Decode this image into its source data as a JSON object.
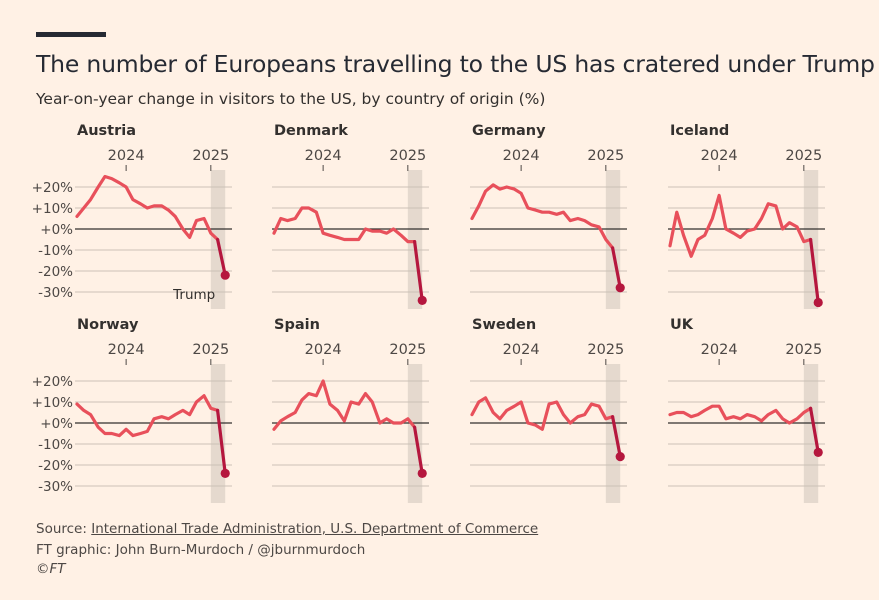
{
  "title": "The number of Europeans travelling to the US has cratered under Trump",
  "subtitle": "Year-on-year change in visitors to the US, by country of origin (%)",
  "footer": {
    "source_label": "Source: ",
    "source_link": "International Trade Administration, U.S. Department of Commerce",
    "credit": "FT graphic: John Burn-Murdoch / @jburnmurdoch",
    "copyright": "©FT"
  },
  "colors": {
    "background": "#fff1e5",
    "series": "#e8505b",
    "trump_period": "#b5173e",
    "shade": "#e5d9ce",
    "grid": "#ccc1b7",
    "zero_line": "#33302e"
  },
  "chart_data": {
    "type": "line",
    "y_ticks": [
      20,
      10,
      0,
      -10,
      -20,
      -30
    ],
    "y_tick_labels": [
      "+20%",
      "+10%",
      "+0%",
      "-10%",
      "-20%",
      "-30%"
    ],
    "ylim": [
      -35,
      28
    ],
    "x_range": [
      2023.42,
      2025.25
    ],
    "x_ticks": [
      2024,
      2025
    ],
    "x_tick_labels": [
      "2024",
      "2025"
    ],
    "shaded_period": [
      2025.0,
      2025.17
    ],
    "trump_start": 2025.17,
    "annotation": {
      "text": "Trump",
      "panel": "Austria"
    },
    "x": [
      2023.42,
      2023.5,
      2023.58,
      2023.67,
      2023.75,
      2023.83,
      2023.92,
      2024.0,
      2024.08,
      2024.17,
      2024.25,
      2024.33,
      2024.42,
      2024.5,
      2024.58,
      2024.67,
      2024.75,
      2024.83,
      2024.92,
      2025.0,
      2025.08,
      2025.17
    ],
    "panels": [
      {
        "name": "Austria",
        "values": [
          6,
          10,
          14,
          20,
          25,
          24,
          22,
          20,
          14,
          12,
          10,
          11,
          11,
          9,
          6,
          0,
          -4,
          4,
          5,
          -2,
          -5,
          -22
        ]
      },
      {
        "name": "Denmark",
        "values": [
          -2,
          5,
          4,
          5,
          10,
          10,
          8,
          -2,
          -3,
          -4,
          -5,
          -5,
          -5,
          0,
          -1,
          -1,
          -2,
          0,
          -3,
          -6,
          -6,
          -34
        ]
      },
      {
        "name": "Germany",
        "values": [
          5,
          11,
          18,
          21,
          19,
          20,
          19,
          17,
          10,
          9,
          8,
          8,
          7,
          8,
          4,
          5,
          4,
          2,
          1,
          -5,
          -9,
          -28
        ]
      },
      {
        "name": "Iceland",
        "values": [
          -8,
          8,
          -3,
          -13,
          -5,
          -3,
          5,
          16,
          0,
          -2,
          -4,
          -1,
          0,
          5,
          12,
          11,
          0,
          3,
          1,
          -6,
          -5,
          -35
        ]
      },
      {
        "name": "Norway",
        "values": [
          9,
          6,
          4,
          -2,
          -5,
          -5,
          -6,
          -3,
          -6,
          -5,
          -4,
          2,
          3,
          2,
          4,
          6,
          4,
          10,
          13,
          7,
          6,
          -24
        ]
      },
      {
        "name": "Spain",
        "values": [
          -3,
          1,
          3,
          5,
          11,
          14,
          13,
          20,
          9,
          6,
          1,
          10,
          9,
          14,
          10,
          0,
          2,
          0,
          0,
          2,
          -2,
          -24
        ]
      },
      {
        "name": "Sweden",
        "values": [
          4,
          10,
          12,
          5,
          2,
          6,
          8,
          10,
          0,
          -1,
          -3,
          9,
          10,
          4,
          0,
          3,
          4,
          9,
          8,
          2,
          3,
          -16
        ]
      },
      {
        "name": "UK",
        "values": [
          4,
          5,
          5,
          3,
          4,
          6,
          8,
          8,
          2,
          3,
          2,
          4,
          3,
          1,
          4,
          6,
          2,
          0,
          2,
          5,
          7,
          -14
        ]
      }
    ]
  }
}
